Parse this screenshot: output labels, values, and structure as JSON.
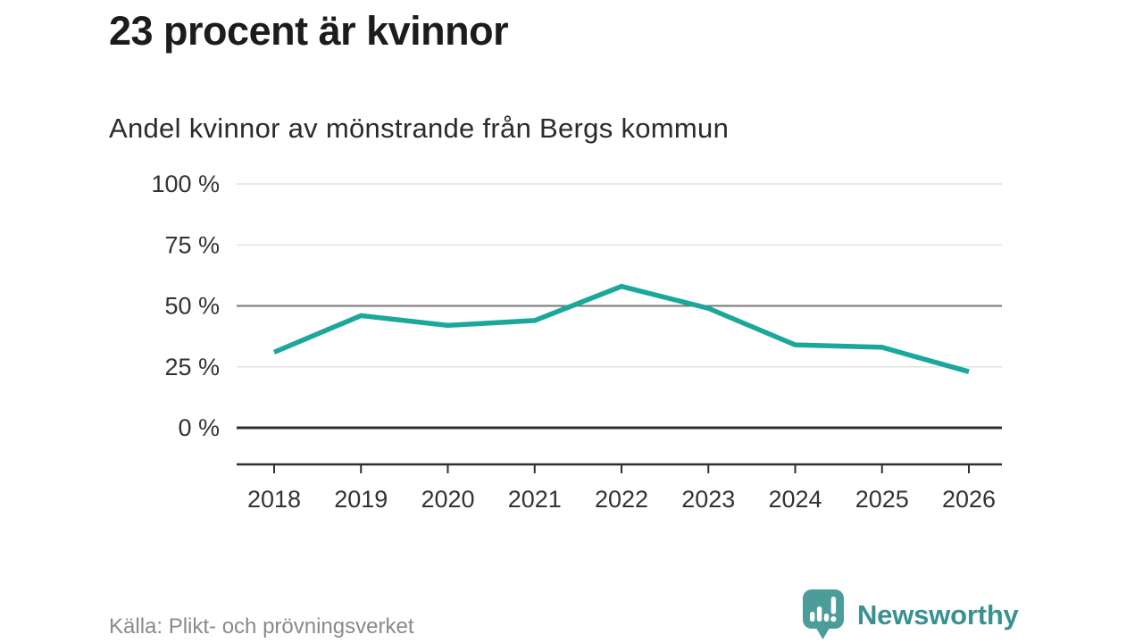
{
  "header": {
    "title": "23 procent är kvinnor",
    "subtitle": "Andel kvinnor av mönstrande från Bergs kommun"
  },
  "chart_data": {
    "type": "line",
    "categories": [
      "2018",
      "2019",
      "2020",
      "2021",
      "2022",
      "2023",
      "2024",
      "2025",
      "2026"
    ],
    "values": [
      31,
      46,
      42,
      44,
      58,
      49,
      34,
      33,
      23
    ],
    "title": "Andel kvinnor av mönstrande från Bergs kommun",
    "xlabel": "",
    "ylabel": "",
    "ylim": [
      0,
      100
    ],
    "yticks": [
      0,
      25,
      50,
      75,
      100
    ],
    "ytick_labels": [
      "0 %",
      "25 %",
      "50 %",
      "75 %",
      "100 %"
    ],
    "grid": "horizontal",
    "legend": "none",
    "line_color": "#1aa79c",
    "emphasized_gridline_value": 50
  },
  "footer": {
    "source": "Källa: Plikt- och prövningsverket",
    "brand": "Newsworthy"
  },
  "icons": {
    "brand_logo": "newsworthy-speech-bubble-bar-chart-exclamation-icon"
  },
  "colors": {
    "accent_line": "#1aa79c",
    "logo_bubble": "#4c9d99",
    "wordmark": "#399290",
    "axis": "#2f2f2f",
    "gridline_light": "#e1e1e1",
    "gridline_mid": "#767676",
    "text_dark": "#1c1c1b",
    "text_axis": "#333333",
    "text_source": "#8a8a8a"
  }
}
